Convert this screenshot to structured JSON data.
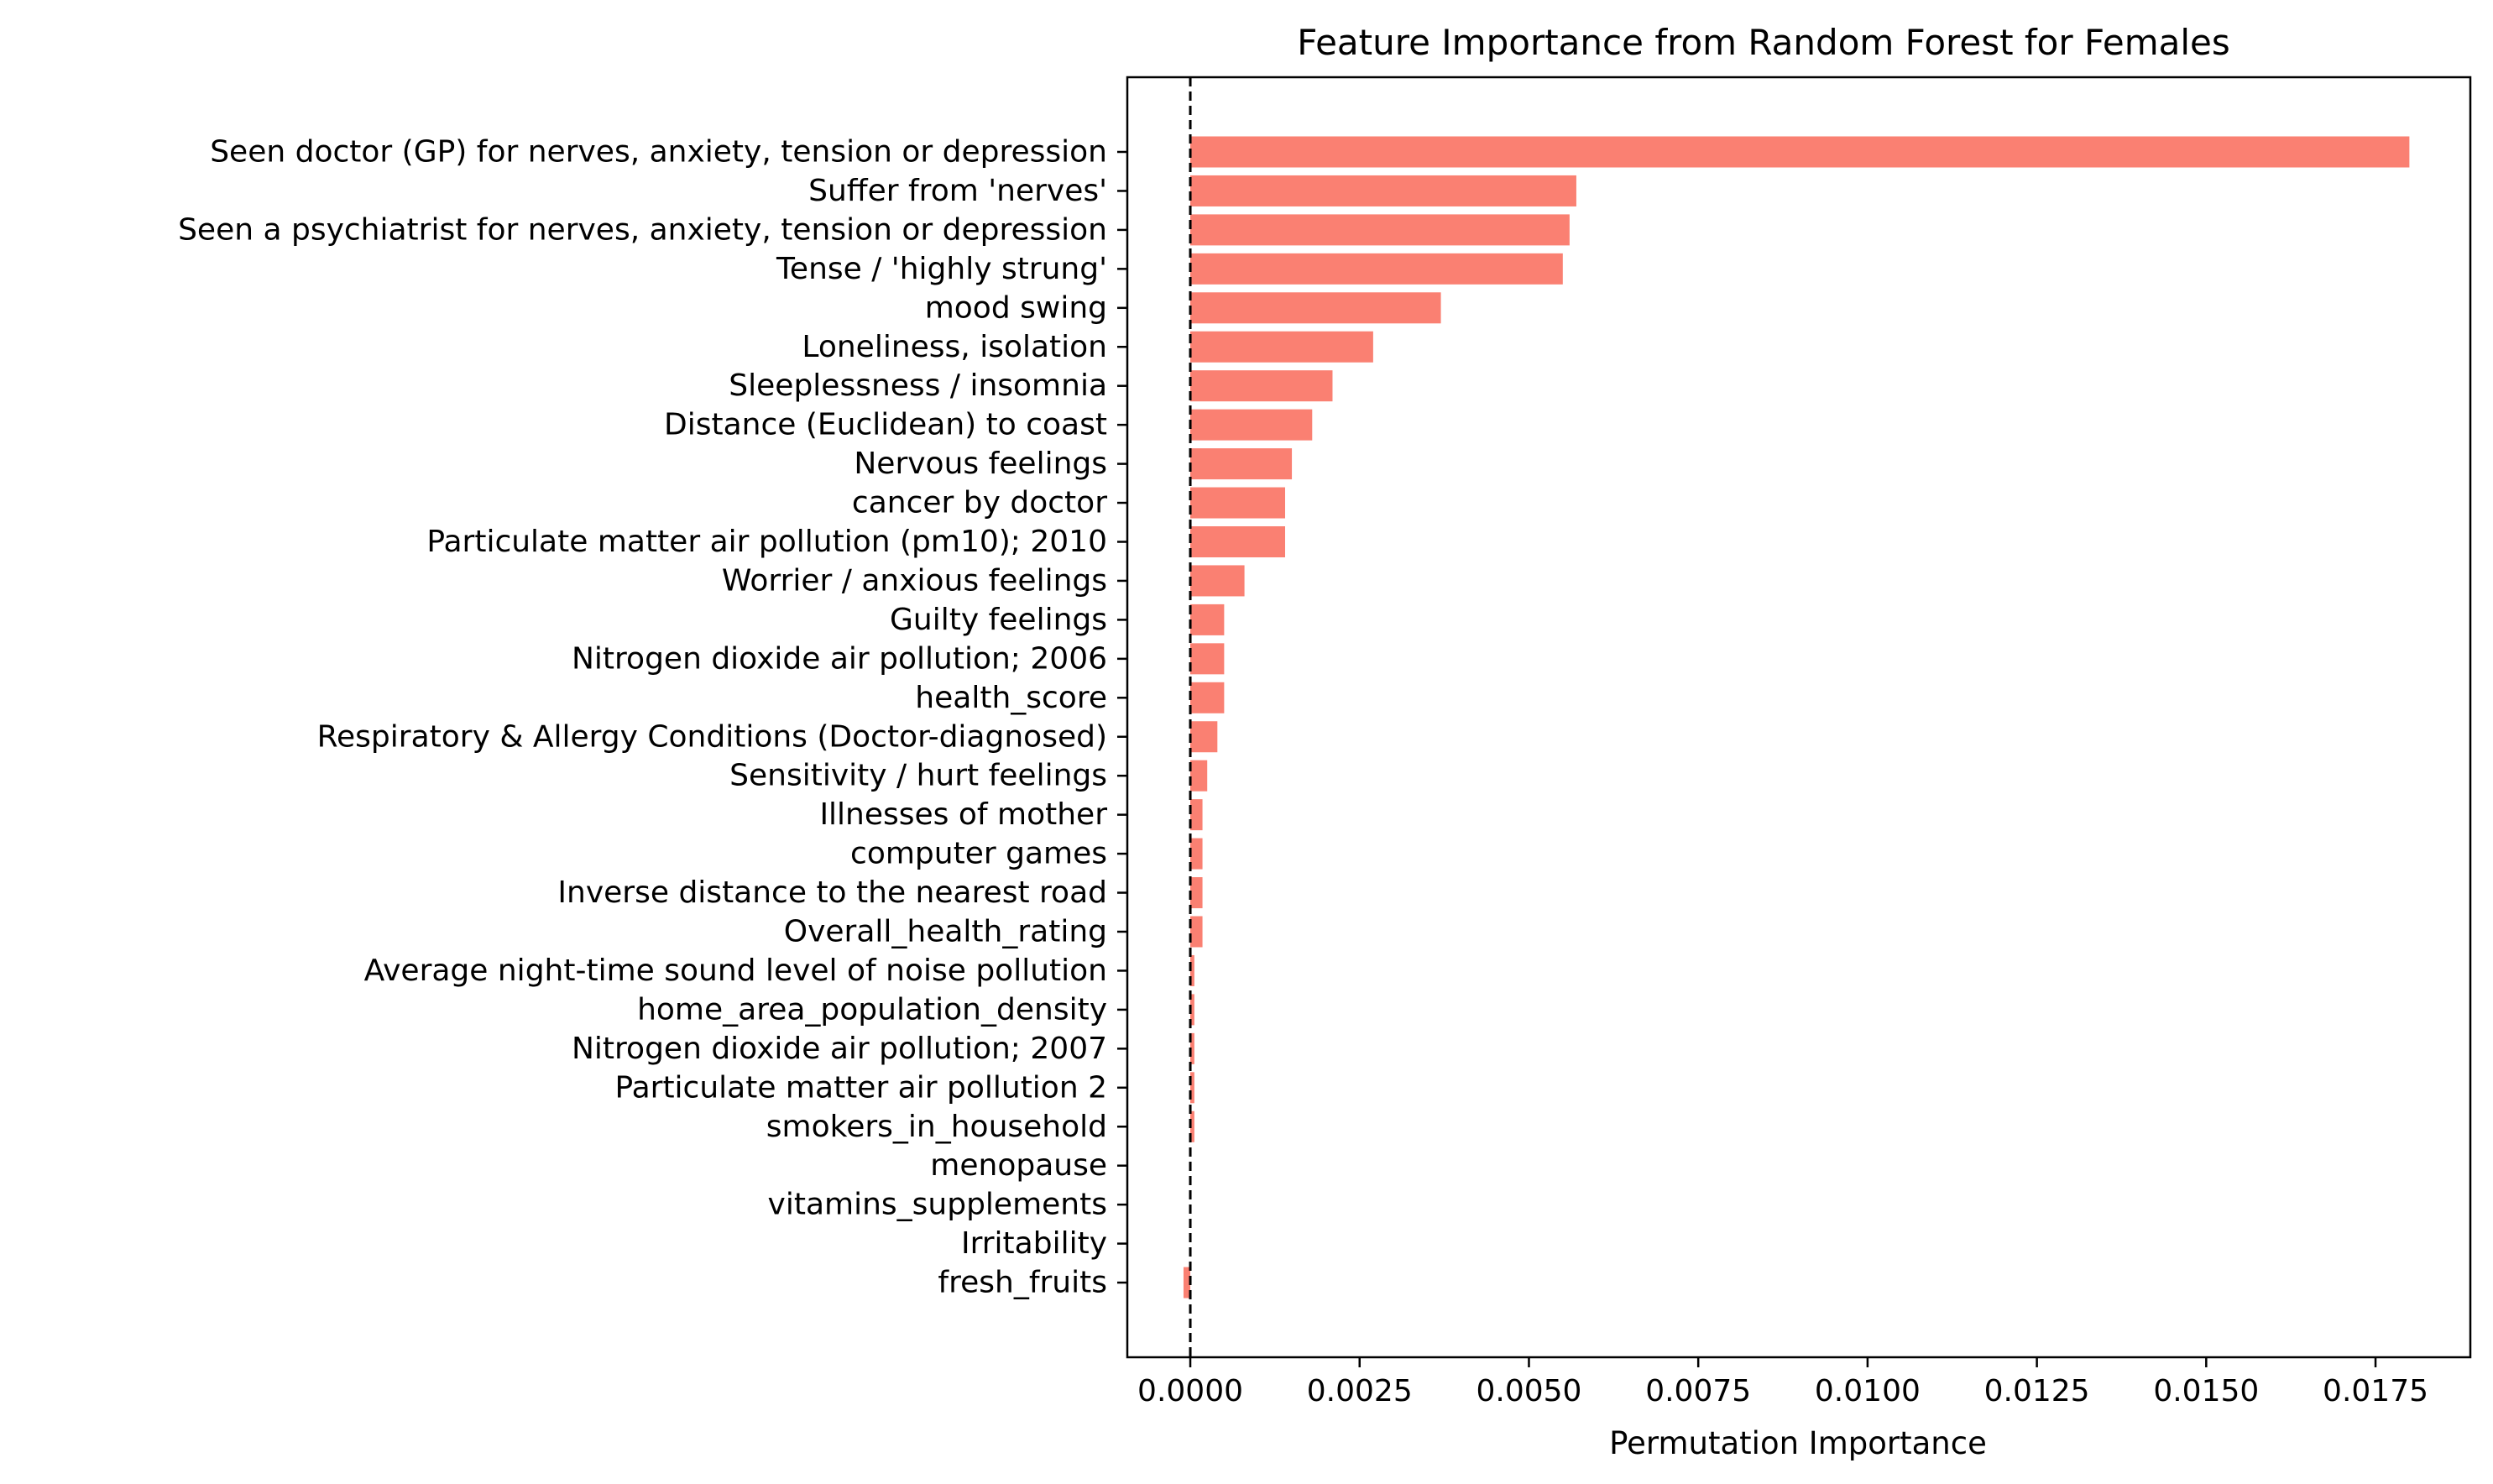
{
  "chart_data": {
    "type": "bar",
    "orientation": "horizontal",
    "title": "Feature Importance from Random Forest for Females",
    "xlabel": "Permutation Importance",
    "ylabel": "",
    "xlim": [
      -0.00093,
      0.0189
    ],
    "xticks": [
      0.0,
      0.0025,
      0.005,
      0.0075,
      0.01,
      0.0125,
      0.015,
      0.0175
    ],
    "xtick_labels": [
      "0.0000",
      "0.0025",
      "0.0050",
      "0.0075",
      "0.0100",
      "0.0125",
      "0.0150",
      "0.0175"
    ],
    "reference_line": {
      "x": 0.0,
      "style": "dashed"
    },
    "grid": false,
    "bar_color": "#fa8072",
    "categories": [
      "Seen doctor (GP) for nerves, anxiety, tension or depression",
      "Suffer from 'nerves'",
      "Seen a psychiatrist for nerves, anxiety, tension or depression",
      "Tense / 'highly strung'",
      "mood swing",
      "Loneliness, isolation",
      "Sleeplessness / insomnia",
      "Distance (Euclidean) to coast",
      "Nervous feelings",
      "cancer by doctor",
      "Particulate matter air pollution (pm10); 2010",
      "Worrier / anxious feelings",
      "Guilty feelings",
      "Nitrogen dioxide air pollution; 2006",
      "health_score",
      "Respiratory & Allergy Conditions (Doctor-diagnosed)",
      "Sensitivity / hurt feelings",
      "Illnesses of mother",
      "computer games",
      "Inverse distance to the nearest road",
      "Overall_health_rating",
      "Average night-time sound level of noise pollution",
      "home_area_population_density",
      "Nitrogen dioxide air pollution; 2007",
      "Particulate matter air pollution 2",
      "smokers_in_household",
      "menopause",
      "vitamins_supplements",
      "Irritability",
      "fresh_fruits"
    ],
    "values": [
      0.018,
      0.0057,
      0.0056,
      0.0055,
      0.0037,
      0.0027,
      0.0021,
      0.0018,
      0.0015,
      0.0014,
      0.0014,
      0.0008,
      0.0005,
      0.0005,
      0.0005,
      0.0004,
      0.00025,
      0.00018,
      0.00018,
      0.00018,
      0.00018,
      6e-05,
      6e-05,
      6e-05,
      6e-05,
      6e-05,
      0.0,
      0.0,
      0.0,
      -0.0001
    ]
  }
}
